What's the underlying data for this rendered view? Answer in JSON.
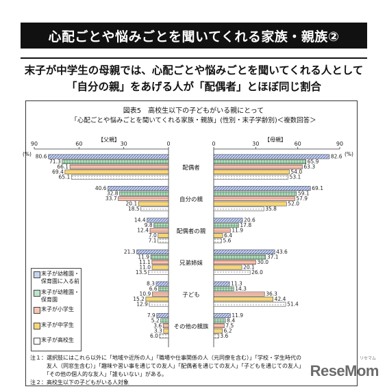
{
  "banner": {
    "title": "心配ごとや悩みごとを聞いてくれる家族・親族②"
  },
  "headline": {
    "line1": "末子が中学生の母親では、心配ごとや悩みごとを聞いてくれる人として",
    "line2": "「自分の親」をあげる人が「配偶者」とほぼ同じ割合"
  },
  "figure": {
    "caption": "図表5　高校生以下の子どもがいる親にとって",
    "subcaption": "「心配ごとや悩みごとを聞いてくれる家族・親族」(性別・末子学齢別)＜複数回答＞",
    "left_label": "【父親】",
    "right_label": "【母親】",
    "unit": "(%)"
  },
  "chart_data": {
    "type": "bar",
    "orientation": "horizontal-butterfly",
    "xlim": [
      0,
      90
    ],
    "ticks": [
      "90",
      "60",
      "30",
      "0"
    ],
    "ticks_right": [
      "0",
      "30",
      "60",
      "90"
    ],
    "categories": [
      "配偶者",
      "自分の親",
      "配偶者の親",
      "兄弟姉妹",
      "子ども",
      "その他の親族"
    ],
    "series": [
      {
        "name": "末子が幼稚園・保育園に入る前",
        "color": "#c8d4ee",
        "pattern": "diag",
        "father": [
          80.6,
          40.6,
          14.4,
          21.3,
          8.3,
          7.9
        ],
        "mother": [
          82.6,
          69.1,
          20.6,
          43.6,
          11.3,
          11.9
        ]
      },
      {
        "name": "末子が幼稚園・保育園",
        "color": "#bde3c9",
        "pattern": "grid",
        "father": [
          71.3,
          32.8,
          9.8,
          11.9,
          6.6,
          5.2
        ],
        "mother": [
          65.9,
          59.1,
          17.8,
          37.1,
          14.3,
          8.4
        ]
      },
      {
        "name": "末子が小学生",
        "color": "#f6c6b5",
        "pattern": "hstripe",
        "father": [
          66.1,
          33.7,
          12.4,
          11.1,
          10.9,
          3.6
        ],
        "mother": [
          63.3,
          57.9,
          11.9,
          30.0,
          36.3,
          7.5
        ]
      },
      {
        "name": "末子が中学生",
        "color": "#f7d679",
        "pattern": "none",
        "father": [
          69.4,
          20.1,
          7.0,
          11.0,
          15.2,
          3.3
        ],
        "mother": [
          54.0,
          52.0,
          6.4,
          20.1,
          42.4,
          6.2
        ]
      },
      {
        "name": "末子が高校生",
        "color": "#ffffff",
        "pattern": "dots",
        "father": [
          65.1,
          18.5,
          7.1,
          13.5,
          12.9,
          6.0
        ],
        "mother": [
          53.1,
          35.8,
          5.6,
          26.0,
          51.4,
          3.6
        ]
      }
    ]
  },
  "legend": {
    "items": [
      {
        "line1": "末子が幼稚園・",
        "line2": "保育園に入る前"
      },
      {
        "line1": "末子が幼稚園・",
        "line2": "保育園"
      },
      {
        "line1": "末子が小学生",
        "line2": ""
      },
      {
        "line1": "末子が中学生",
        "line2": ""
      },
      {
        "line1": "末子が高校生",
        "line2": ""
      }
    ]
  },
  "notes": {
    "n1a": "注１：選択肢にはこれら以外に「地域や近所の人」「職場や仕事関係の人（元同僚を含む）」「学校・学生時代の",
    "n1b": "　　　友人（同窓生含む）」「趣味や習い事を通じての友人」「配偶者を通じての友人」「子どもを通じての友人」",
    "n1c": "　　　「その他の個人的な友人」「誰もいない」がある。",
    "n2": "注２：高校生以下の子どもがいる人対象"
  },
  "logo": {
    "text": "ReseMom",
    "sub": "リセマム"
  }
}
